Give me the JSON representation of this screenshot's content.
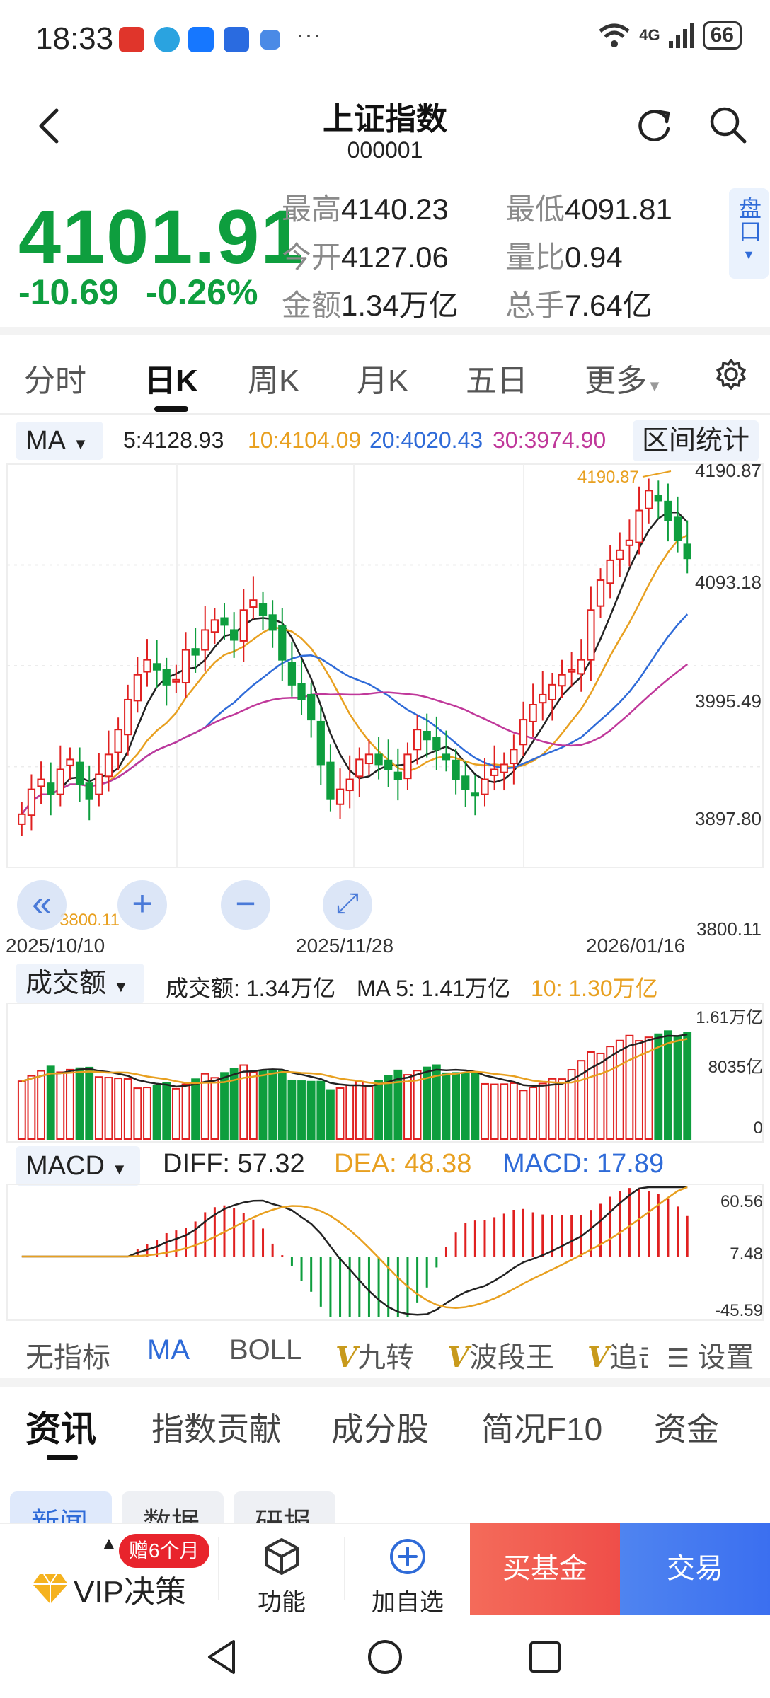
{
  "status_bar": {
    "time": "18:33",
    "network": "4G",
    "battery": "66",
    "overflow": "···"
  },
  "header": {
    "title": "上证指数",
    "code": "000001",
    "back_icon": "chevron-left-icon",
    "refresh_icon": "refresh-icon",
    "search_icon": "search-icon"
  },
  "quote": {
    "price": "4101.91",
    "change": "-10.69",
    "change_pct": "-0.26%",
    "stats": [
      {
        "label": "最高",
        "value": "4140.23"
      },
      {
        "label": "最低",
        "value": "4091.81"
      },
      {
        "label": "今开",
        "value": "4127.06"
      },
      {
        "label": "量比",
        "value": "0.94"
      },
      {
        "label": "金额",
        "value": "1.34万亿"
      },
      {
        "label": "总手",
        "value": "7.64亿"
      }
    ],
    "pankou": "盘口",
    "color_down": "#0e9e3e",
    "color_up": "#e02020"
  },
  "period_tabs": [
    "分时",
    "日K",
    "周K",
    "月K",
    "五日",
    "更多"
  ],
  "active_period": "日K",
  "ma": {
    "selector": "MA",
    "ma5": "5:4128.93",
    "ma10": "10:4104.09",
    "ma20": "20:4020.43",
    "ma30": "30:3974.90",
    "range_button": "区间统计",
    "colors": {
      "ma5": "#222222",
      "ma10": "#e8a020",
      "ma20": "#2f6bd8",
      "ma30": "#c0389a"
    }
  },
  "kline": {
    "y_ticks": [
      "4190.87",
      "4093.18",
      "3995.49",
      "3897.80",
      "3800.11"
    ],
    "dates": [
      "2025/10/10",
      "2025/11/28",
      "2026/01/16"
    ],
    "high_label": "4190.87",
    "low_label": "3800.11"
  },
  "volume": {
    "selector": "成交额",
    "total": "成交额: 1.34万亿",
    "ma5": "MA 5: 1.41万亿",
    "ma10": "10: 1.30万亿",
    "y_ticks": [
      "1.61万亿",
      "8035亿",
      "0"
    ]
  },
  "macd": {
    "selector": "MACD",
    "diff": "DIFF: 57.32",
    "dea": "DEA: 48.38",
    "macd": "MACD: 17.89",
    "y_ticks": [
      "60.56",
      "7.48",
      "-45.59"
    ]
  },
  "indicators": [
    "无指标",
    "MA",
    "BOLL",
    "九转",
    "波段王",
    "追击",
    "设置"
  ],
  "info_tabs": [
    "资讯",
    "指数贡献",
    "成分股",
    "简况F10",
    "资金"
  ],
  "news_chips": [
    "新闻",
    "数据",
    "研报"
  ],
  "bottom_bar": {
    "vip": "VIP决策",
    "gift": "赠6个月",
    "function": "功能",
    "add": "加自选",
    "buy_fund": "买基金",
    "trade": "交易"
  }
}
